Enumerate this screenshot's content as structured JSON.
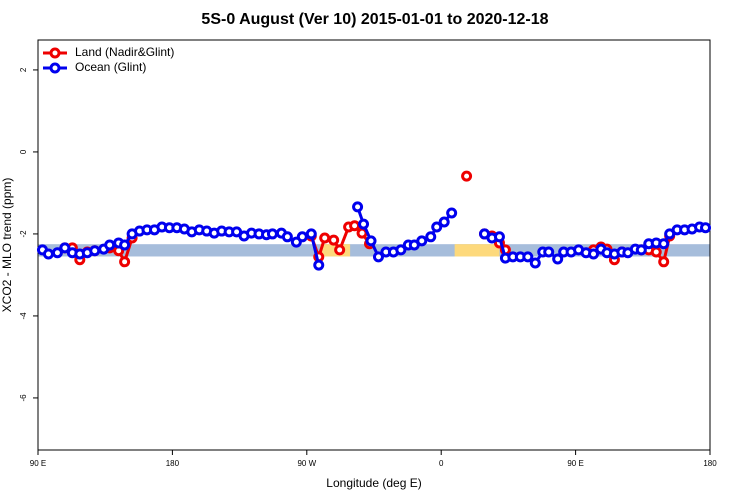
{
  "chart_data": {
    "type": "line",
    "title": "5S-0 August (Ver 10)   2015-01-01 to 2020-12-18",
    "x_label": "Longitude (deg E)",
    "y_label": "XCO2 - MLO trend (ppm)",
    "xlim": [
      90,
      540
    ],
    "ylim": [
      -7.27,
      2.73
    ],
    "xticks": [
      {
        "value": 90,
        "label": "90 E"
      },
      180,
      {
        "value": 270,
        "label": "90 W"
      },
      {
        "value": 360,
        "label": "0"
      },
      {
        "value": 450,
        "label": "90 E"
      },
      {
        "value": 540,
        "label": "180"
      }
    ],
    "yticks": [
      2,
      0,
      -2,
      -4,
      -6
    ],
    "legend": "top-left",
    "band": {
      "range": [
        -2.55,
        -2.25
      ],
      "color": "#a6bddb"
    },
    "land_band": {
      "color": "#fdd97c",
      "x_ranges": [
        [
          279,
          299
        ],
        [
          369,
          399
        ]
      ]
    },
    "series": [
      {
        "name": "Land (Nadir&Glint)",
        "color": "#ee0000",
        "x": [
          108,
          113,
          118,
          123,
          128,
          133,
          138,
          144,
          148,
          153,
          213,
          273,
          278,
          282,
          288,
          292,
          298,
          302,
          307,
          312,
          340,
          377,
          383,
          389,
          394,
          399,
          403,
          430,
          462,
          467,
          471,
          476,
          481,
          488,
          494,
          499,
          504,
          509,
          513
        ],
        "values": [
          -2.34,
          -2.34,
          -2.63,
          -2.44,
          -2.41,
          null,
          -2.34,
          -2.41,
          -2.68,
          -2.1,
          null,
          -2.05,
          -2.56,
          -2.1,
          -2.15,
          -2.39,
          -1.83,
          -1.8,
          -1.98,
          -2.24,
          null,
          -0.59,
          null,
          -2.0,
          -2.05,
          -2.22,
          -2.39,
          null,
          -2.39,
          -2.32,
          -2.37,
          -2.63,
          -2.44,
          null,
          -2.39,
          -2.39,
          -2.44,
          -2.68,
          -2.05
        ]
      },
      {
        "name": "Ocean (Glint)",
        "color": "#0000ee",
        "x": [
          93,
          97,
          103,
          108,
          113,
          118,
          123,
          128,
          134,
          138,
          144,
          148,
          153,
          158,
          163,
          168,
          173,
          178,
          183,
          188,
          193,
          198,
          203,
          208,
          213,
          218,
          223,
          228,
          233,
          238,
          243,
          247,
          253,
          257,
          263,
          267,
          273,
          278,
          290,
          304,
          308,
          313,
          318,
          323,
          328,
          333,
          338,
          342,
          347,
          353,
          357,
          362,
          367,
          378,
          389,
          394,
          399,
          403,
          408,
          413,
          418,
          423,
          428,
          432,
          438,
          442,
          447,
          452,
          457,
          462,
          467,
          471,
          476,
          481,
          485,
          490,
          494,
          499,
          504,
          509,
          513,
          518,
          523,
          528,
          533,
          537
        ],
        "values": [
          -2.39,
          -2.49,
          -2.46,
          -2.34,
          -2.46,
          -2.49,
          -2.46,
          -2.41,
          -2.37,
          -2.27,
          -2.22,
          -2.27,
          -2.0,
          -1.93,
          -1.9,
          -1.9,
          -1.83,
          -1.85,
          -1.85,
          -1.88,
          -1.95,
          -1.9,
          -1.93,
          -1.98,
          -1.93,
          -1.95,
          -1.95,
          -2.05,
          -1.98,
          -2.0,
          -2.02,
          -2.0,
          -1.98,
          -2.07,
          -2.2,
          -2.07,
          -2.0,
          -2.76,
          null,
          -1.34,
          -1.76,
          -2.17,
          -2.56,
          -2.44,
          -2.44,
          -2.39,
          -2.27,
          -2.27,
          -2.17,
          -2.07,
          -1.83,
          -1.71,
          -1.49,
          null,
          -2.0,
          -2.1,
          -2.07,
          -2.59,
          -2.56,
          -2.56,
          -2.56,
          -2.71,
          -2.44,
          -2.44,
          -2.61,
          -2.44,
          -2.44,
          -2.39,
          -2.46,
          -2.49,
          -2.37,
          -2.46,
          -2.49,
          -2.44,
          -2.46,
          -2.37,
          -2.39,
          -2.24,
          -2.22,
          -2.24,
          -2.0,
          -1.9,
          -1.9,
          -1.88,
          -1.83,
          -1.85
        ]
      }
    ]
  }
}
